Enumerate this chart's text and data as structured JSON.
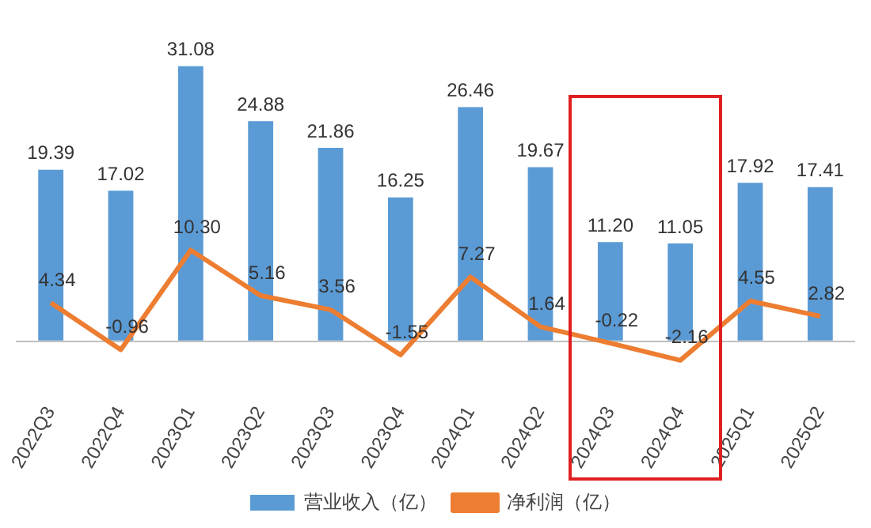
{
  "chart_data": {
    "type": "bar",
    "categories": [
      "2022Q3",
      "2022Q4",
      "2023Q1",
      "2023Q2",
      "2023Q3",
      "2023Q4",
      "2024Q1",
      "2024Q2",
      "2024Q3",
      "2024Q4",
      "2025Q1",
      "2025Q2"
    ],
    "series": [
      {
        "name": "营业收入（亿）",
        "color": "#5b9bd5",
        "values": [
          19.39,
          17.02,
          31.08,
          24.88,
          21.86,
          16.25,
          26.46,
          19.67,
          11.2,
          11.05,
          17.92,
          17.41
        ],
        "value_labels": [
          "19.39",
          "17.02",
          "31.08",
          "24.88",
          "21.86",
          "16.25",
          "26.46",
          "19.67",
          "11.20",
          "11.05",
          "17.92",
          "17.41"
        ]
      },
      {
        "name": "净利润（亿）",
        "type": "line",
        "color": "#ed7d31",
        "values": [
          4.34,
          -0.96,
          10.3,
          5.16,
          3.56,
          -1.55,
          7.27,
          1.64,
          -0.22,
          -2.16,
          4.55,
          2.82
        ],
        "value_labels": [
          "4.34",
          "-0.96",
          "10.30",
          "5.16",
          "3.56",
          "-1.55",
          "7.27",
          "1.64",
          "-0.22",
          "-2.16",
          "4.55",
          "2.82"
        ]
      }
    ],
    "legend": "bottom",
    "grid": false,
    "marker": "none"
  }
}
